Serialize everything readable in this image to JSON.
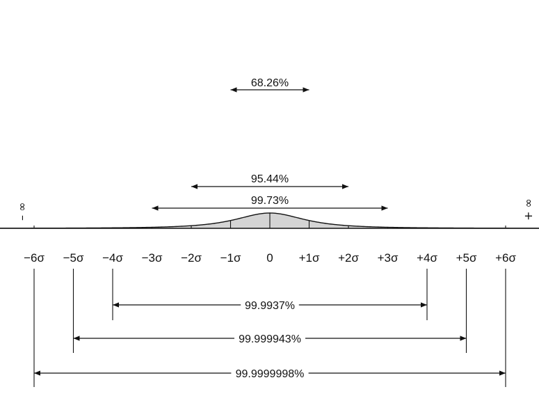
{
  "diagram": {
    "curve_fill": "#d4d4d4",
    "line_color": "#111111",
    "background": "#ffffff"
  },
  "infinity": {
    "left": "– ∞",
    "right": "+ ∞"
  },
  "axis": {
    "ticks": [
      {
        "value": -6,
        "label": "−6σ"
      },
      {
        "value": -5,
        "label": "−5σ"
      },
      {
        "value": -4,
        "label": "−4σ"
      },
      {
        "value": -3,
        "label": "−3σ"
      },
      {
        "value": -2,
        "label": "−2σ"
      },
      {
        "value": -1,
        "label": "−1σ"
      },
      {
        "value": 0,
        "label": "0"
      },
      {
        "value": 1,
        "label": "+1σ"
      },
      {
        "value": 2,
        "label": "+2σ"
      },
      {
        "value": 3,
        "label": "+3σ"
      },
      {
        "value": 4,
        "label": "+4σ"
      },
      {
        "value": 5,
        "label": "+5σ"
      },
      {
        "value": 6,
        "label": "+6σ"
      }
    ]
  },
  "ranges_inside": [
    {
      "sigma": 1,
      "label": "68.26%"
    },
    {
      "sigma": 2,
      "label": "95.44%"
    },
    {
      "sigma": 3,
      "label": "99.73%"
    }
  ],
  "ranges_below": [
    {
      "sigma": 4,
      "label": "99.9937%"
    },
    {
      "sigma": 5,
      "label": "99.999943%"
    },
    {
      "sigma": 6,
      "label": "99.9999998%"
    }
  ]
}
